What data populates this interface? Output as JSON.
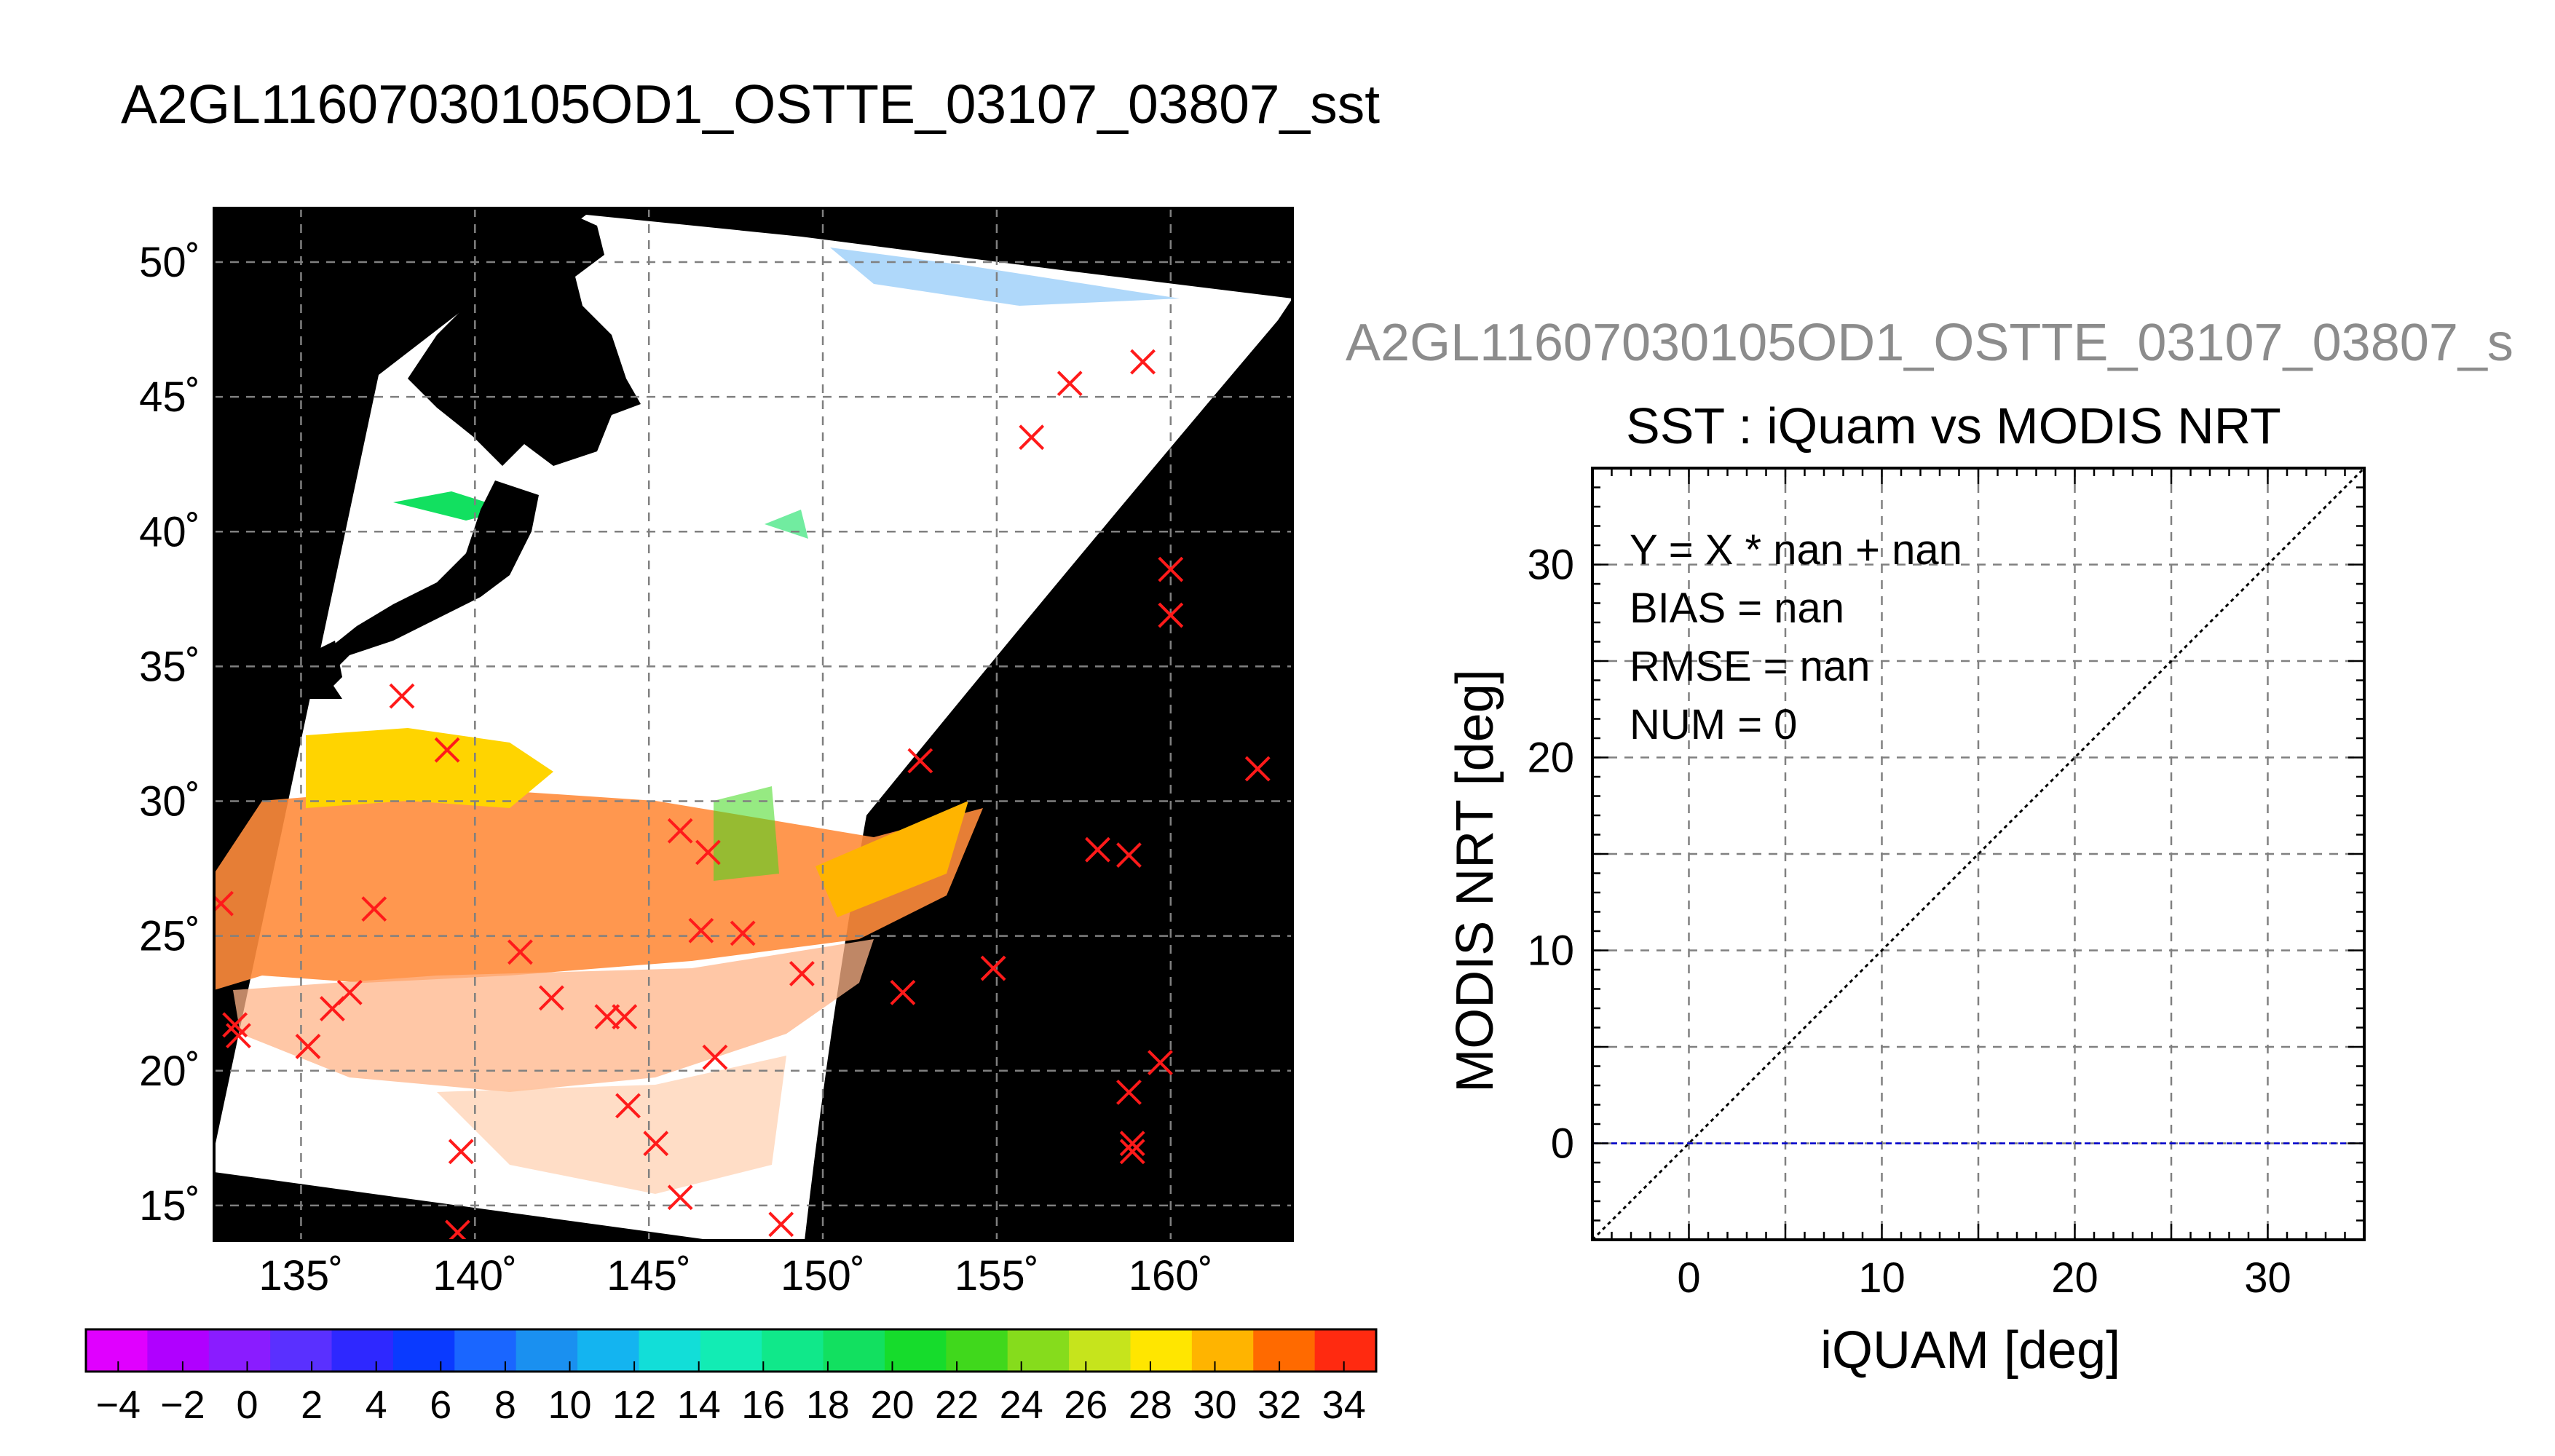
{
  "main_title": "A2GL11607030105OD1_OSTTE_03107_03807_sst",
  "map": {
    "lat_ticks": [
      50,
      45,
      40,
      35,
      30,
      25,
      20,
      15
    ],
    "lon_ticks": [
      135,
      140,
      145,
      150,
      155,
      160
    ],
    "lat_range": [
      13.7,
      52
    ],
    "lon_range": [
      132.5,
      163.5
    ],
    "degree_symbol": "˚",
    "colors": {
      "land": "#000000",
      "no_data": "#ffffff",
      "marker": "#ff1a1a",
      "grid": "#808080"
    },
    "iquam_markers": [
      {
        "lon": 159.2,
        "lat": 46.3
      },
      {
        "lon": 157.1,
        "lat": 45.5
      },
      {
        "lon": 156.0,
        "lat": 43.5
      },
      {
        "lon": 160.0,
        "lat": 38.6
      },
      {
        "lon": 160.0,
        "lat": 36.9
      },
      {
        "lon": 162.5,
        "lat": 31.2
      },
      {
        "lon": 137.9,
        "lat": 33.9
      },
      {
        "lon": 139.2,
        "lat": 31.9
      },
      {
        "lon": 152.8,
        "lat": 31.5
      },
      {
        "lon": 145.9,
        "lat": 28.9
      },
      {
        "lon": 146.7,
        "lat": 28.1
      },
      {
        "lon": 157.9,
        "lat": 28.2
      },
      {
        "lon": 158.8,
        "lat": 28.0
      },
      {
        "lon": 132.7,
        "lat": 26.2
      },
      {
        "lon": 137.1,
        "lat": 26.0
      },
      {
        "lon": 146.5,
        "lat": 25.2
      },
      {
        "lon": 147.7,
        "lat": 25.1
      },
      {
        "lon": 141.3,
        "lat": 24.4
      },
      {
        "lon": 149.4,
        "lat": 23.6
      },
      {
        "lon": 154.9,
        "lat": 23.8
      },
      {
        "lon": 152.3,
        "lat": 22.9
      },
      {
        "lon": 136.4,
        "lat": 22.9
      },
      {
        "lon": 135.9,
        "lat": 22.3
      },
      {
        "lon": 142.2,
        "lat": 22.7
      },
      {
        "lon": 143.8,
        "lat": 22.0
      },
      {
        "lon": 144.3,
        "lat": 22.0
      },
      {
        "lon": 133.1,
        "lat": 21.7
      },
      {
        "lon": 133.2,
        "lat": 21.3
      },
      {
        "lon": 135.2,
        "lat": 20.9
      },
      {
        "lon": 146.9,
        "lat": 20.5
      },
      {
        "lon": 159.7,
        "lat": 20.3
      },
      {
        "lon": 158.8,
        "lat": 19.2
      },
      {
        "lon": 144.4,
        "lat": 18.7
      },
      {
        "lon": 139.6,
        "lat": 17.0
      },
      {
        "lon": 145.2,
        "lat": 17.3
      },
      {
        "lon": 158.9,
        "lat": 17.3
      },
      {
        "lon": 158.9,
        "lat": 17.0
      },
      {
        "lon": 145.9,
        "lat": 15.3
      },
      {
        "lon": 139.5,
        "lat": 14.0
      },
      {
        "lon": 148.8,
        "lat": 14.3
      }
    ]
  },
  "colorbar": {
    "min": -5,
    "max": 35,
    "steps": 20,
    "tick_values": [
      -4,
      -2,
      0,
      2,
      4,
      6,
      8,
      10,
      12,
      14,
      16,
      18,
      20,
      22,
      24,
      26,
      28,
      30,
      32,
      34
    ],
    "colors": [
      "#e000ff",
      "#b000ff",
      "#8a1cff",
      "#5a30ff",
      "#2e28ff",
      "#0a3aff",
      "#1a66ff",
      "#1a90f0",
      "#14b4f0",
      "#12ded8",
      "#12ecb4",
      "#10e88a",
      "#12e060",
      "#16dc2c",
      "#40d81c",
      "#86dc1c",
      "#c6e41c",
      "#ffe600",
      "#ffb400",
      "#ff6a00",
      "#ff2a10"
    ]
  },
  "chart_data": {
    "type": "scatter",
    "filename": "A2GL11607030105OD1_OSTTE_03107_03807_s",
    "title": "SST : iQuam vs MODIS NRT",
    "xlabel": "iQUAM [deg]",
    "ylabel": "MODIS NRT [deg]",
    "xlim": [
      -5,
      35
    ],
    "ylim": [
      -5,
      35
    ],
    "xticks": [
      0,
      10,
      20,
      30
    ],
    "yticks": [
      0,
      10,
      20,
      30
    ],
    "grid": true,
    "points": [],
    "series": [
      {
        "kind": "identity-line",
        "x": [
          -5,
          35
        ],
        "y": [
          -5,
          35
        ],
        "style": "dotted",
        "color": "#000000"
      },
      {
        "kind": "zero-line",
        "x": [
          -5,
          35
        ],
        "y": [
          0,
          0
        ],
        "style": "dashed",
        "color": "#0000cc"
      }
    ],
    "stats": {
      "fit": "Y = X * nan + nan",
      "bias": "BIAS = nan",
      "rmse": "RMSE = nan",
      "num": "NUM = 0"
    }
  }
}
